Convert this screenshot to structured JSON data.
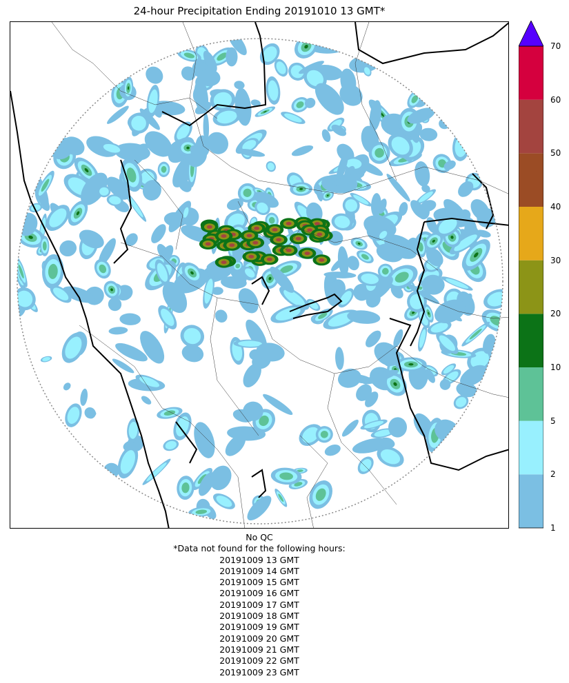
{
  "title": "24-hour Precipitation Ending 20191010 13 GMT*",
  "colorbar": {
    "ticks": [
      "1",
      "2",
      "5",
      "10",
      "20",
      "30",
      "40",
      "50",
      "60",
      "70"
    ],
    "bins": [
      {
        "from": 1,
        "to": 2,
        "color": "#7bbfe3"
      },
      {
        "from": 2,
        "to": 5,
        "color": "#98f0fe"
      },
      {
        "from": 5,
        "to": 10,
        "color": "#5ec297"
      },
      {
        "from": 10,
        "to": 20,
        "color": "#0c7317"
      },
      {
        "from": 20,
        "to": 30,
        "color": "#8c9417"
      },
      {
        "from": 30,
        "to": 40,
        "color": "#e6a81a"
      },
      {
        "from": 40,
        "to": 50,
        "color": "#9b4c25"
      },
      {
        "from": 50,
        "to": 60,
        "color": "#a3443f"
      },
      {
        "from": 60,
        "to": 70,
        "color": "#d5003e"
      }
    ],
    "extend_max_color": "#5500ff"
  },
  "notes": {
    "qc": "No QC",
    "missing_header": "*Data not found for the following hours:",
    "missing_hours": [
      "20191009 13 GMT",
      "20191009 14 GMT",
      "20191009 15 GMT",
      "20191009 16 GMT",
      "20191009 17 GMT",
      "20191009 18 GMT",
      "20191009 19 GMT",
      "20191009 20 GMT",
      "20191009 21 GMT",
      "20191009 22 GMT",
      "20191009 23 GMT"
    ]
  }
}
